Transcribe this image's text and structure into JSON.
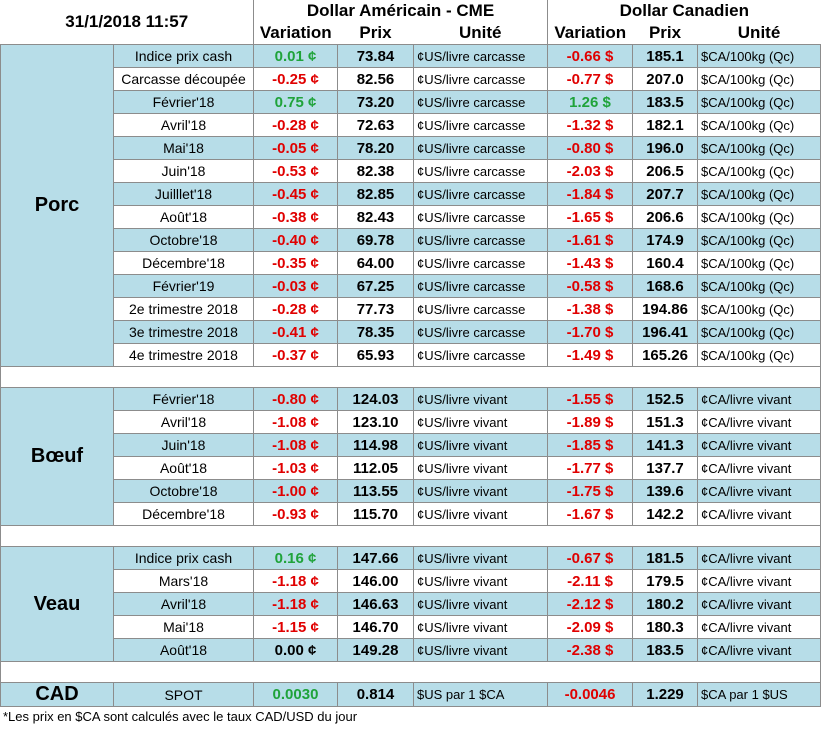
{
  "header": {
    "date": "31/1/2018 11:57",
    "usd_title": "Dollar Américain - CME",
    "cad_title": "Dollar Canadien",
    "col_variation": "Variation",
    "col_prix": "Prix",
    "col_unite": "Unité"
  },
  "groups": [
    {
      "name": "Porc",
      "rows": [
        {
          "label": "Indice prix cash",
          "usd_var": "0.01 ¢",
          "usd_sign": "pos",
          "usd_price": "73.84",
          "usd_unit": "¢US/livre carcasse",
          "cad_var": "-0.66 $",
          "cad_sign": "neg",
          "cad_price": "185.1",
          "cad_unit": "$CA/100kg (Qc)"
        },
        {
          "label": "Carcasse découpée",
          "usd_var": "-0.25 ¢",
          "usd_sign": "neg",
          "usd_price": "82.56",
          "usd_unit": "¢US/livre carcasse",
          "cad_var": "-0.77 $",
          "cad_sign": "neg",
          "cad_price": "207.0",
          "cad_unit": "$CA/100kg (Qc)"
        },
        {
          "label": "Février'18",
          "usd_var": "0.75 ¢",
          "usd_sign": "pos",
          "usd_price": "73.20",
          "usd_unit": "¢US/livre carcasse",
          "cad_var": "1.26 $",
          "cad_sign": "pos",
          "cad_price": "183.5",
          "cad_unit": "$CA/100kg (Qc)"
        },
        {
          "label": "Avril'18",
          "usd_var": "-0.28 ¢",
          "usd_sign": "neg",
          "usd_price": "72.63",
          "usd_unit": "¢US/livre carcasse",
          "cad_var": "-1.32 $",
          "cad_sign": "neg",
          "cad_price": "182.1",
          "cad_unit": "$CA/100kg (Qc)"
        },
        {
          "label": "Mai'18",
          "usd_var": "-0.05 ¢",
          "usd_sign": "neg",
          "usd_price": "78.20",
          "usd_unit": "¢US/livre carcasse",
          "cad_var": "-0.80 $",
          "cad_sign": "neg",
          "cad_price": "196.0",
          "cad_unit": "$CA/100kg (Qc)"
        },
        {
          "label": "Juin'18",
          "usd_var": "-0.53 ¢",
          "usd_sign": "neg",
          "usd_price": "82.38",
          "usd_unit": "¢US/livre carcasse",
          "cad_var": "-2.03 $",
          "cad_sign": "neg",
          "cad_price": "206.5",
          "cad_unit": "$CA/100kg (Qc)"
        },
        {
          "label": "Juilllet'18",
          "usd_var": "-0.45 ¢",
          "usd_sign": "neg",
          "usd_price": "82.85",
          "usd_unit": "¢US/livre carcasse",
          "cad_var": "-1.84 $",
          "cad_sign": "neg",
          "cad_price": "207.7",
          "cad_unit": "$CA/100kg (Qc)"
        },
        {
          "label": "Août'18",
          "usd_var": "-0.38 ¢",
          "usd_sign": "neg",
          "usd_price": "82.43",
          "usd_unit": "¢US/livre carcasse",
          "cad_var": "-1.65 $",
          "cad_sign": "neg",
          "cad_price": "206.6",
          "cad_unit": "$CA/100kg (Qc)"
        },
        {
          "label": "Octobre'18",
          "usd_var": "-0.40 ¢",
          "usd_sign": "neg",
          "usd_price": "69.78",
          "usd_unit": "¢US/livre carcasse",
          "cad_var": "-1.61 $",
          "cad_sign": "neg",
          "cad_price": "174.9",
          "cad_unit": "$CA/100kg (Qc)"
        },
        {
          "label": "Décembre'18",
          "usd_var": "-0.35 ¢",
          "usd_sign": "neg",
          "usd_price": "64.00",
          "usd_unit": "¢US/livre carcasse",
          "cad_var": "-1.43 $",
          "cad_sign": "neg",
          "cad_price": "160.4",
          "cad_unit": "$CA/100kg (Qc)"
        },
        {
          "label": "Février'19",
          "usd_var": "-0.03 ¢",
          "usd_sign": "neg",
          "usd_price": "67.25",
          "usd_unit": "¢US/livre carcasse",
          "cad_var": "-0.58 $",
          "cad_sign": "neg",
          "cad_price": "168.6",
          "cad_unit": "$CA/100kg (Qc)"
        },
        {
          "label": "2e trimestre 2018",
          "usd_var": "-0.28 ¢",
          "usd_sign": "neg",
          "usd_price": "77.73",
          "usd_unit": "¢US/livre carcasse",
          "cad_var": "-1.38 $",
          "cad_sign": "neg",
          "cad_price": "194.86",
          "cad_unit": "$CA/100kg (Qc)"
        },
        {
          "label": "3e trimestre 2018",
          "usd_var": "-0.41 ¢",
          "usd_sign": "neg",
          "usd_price": "78.35",
          "usd_unit": "¢US/livre carcasse",
          "cad_var": "-1.70 $",
          "cad_sign": "neg",
          "cad_price": "196.41",
          "cad_unit": "$CA/100kg (Qc)"
        },
        {
          "label": "4e trimestre 2018",
          "usd_var": "-0.37 ¢",
          "usd_sign": "neg",
          "usd_price": "65.93",
          "usd_unit": "¢US/livre carcasse",
          "cad_var": "-1.49 $",
          "cad_sign": "neg",
          "cad_price": "165.26",
          "cad_unit": "$CA/100kg (Qc)"
        }
      ]
    },
    {
      "name": "Bœuf",
      "rows": [
        {
          "label": "Février'18",
          "usd_var": "-0.80 ¢",
          "usd_sign": "neg",
          "usd_price": "124.03",
          "usd_unit": "¢US/livre vivant",
          "cad_var": "-1.55 $",
          "cad_sign": "neg",
          "cad_price": "152.5",
          "cad_unit": "¢CA/livre vivant"
        },
        {
          "label": "Avril'18",
          "usd_var": "-1.08 ¢",
          "usd_sign": "neg",
          "usd_price": "123.10",
          "usd_unit": "¢US/livre vivant",
          "cad_var": "-1.89 $",
          "cad_sign": "neg",
          "cad_price": "151.3",
          "cad_unit": "¢CA/livre vivant"
        },
        {
          "label": "Juin'18",
          "usd_var": "-1.08 ¢",
          "usd_sign": "neg",
          "usd_price": "114.98",
          "usd_unit": "¢US/livre vivant",
          "cad_var": "-1.85 $",
          "cad_sign": "neg",
          "cad_price": "141.3",
          "cad_unit": "¢CA/livre vivant"
        },
        {
          "label": "Août'18",
          "usd_var": "-1.03 ¢",
          "usd_sign": "neg",
          "usd_price": "112.05",
          "usd_unit": "¢US/livre vivant",
          "cad_var": "-1.77 $",
          "cad_sign": "neg",
          "cad_price": "137.7",
          "cad_unit": "¢CA/livre vivant"
        },
        {
          "label": "Octobre'18",
          "usd_var": "-1.00 ¢",
          "usd_sign": "neg",
          "usd_price": "113.55",
          "usd_unit": "¢US/livre vivant",
          "cad_var": "-1.75 $",
          "cad_sign": "neg",
          "cad_price": "139.6",
          "cad_unit": "¢CA/livre vivant"
        },
        {
          "label": "Décembre'18",
          "usd_var": "-0.93 ¢",
          "usd_sign": "neg",
          "usd_price": "115.70",
          "usd_unit": "¢US/livre vivant",
          "cad_var": "-1.67 $",
          "cad_sign": "neg",
          "cad_price": "142.2",
          "cad_unit": "¢CA/livre vivant"
        }
      ]
    },
    {
      "name": "Veau",
      "rows": [
        {
          "label": "Indice prix cash",
          "usd_var": "0.16 ¢",
          "usd_sign": "pos",
          "usd_price": "147.66",
          "usd_unit": "¢US/livre vivant",
          "cad_var": "-0.67 $",
          "cad_sign": "neg",
          "cad_price": "181.5",
          "cad_unit": "¢CA/livre vivant"
        },
        {
          "label": "Mars'18",
          "usd_var": "-1.18 ¢",
          "usd_sign": "neg",
          "usd_price": "146.00",
          "usd_unit": "¢US/livre vivant",
          "cad_var": "-2.11 $",
          "cad_sign": "neg",
          "cad_price": "179.5",
          "cad_unit": "¢CA/livre vivant"
        },
        {
          "label": "Avril'18",
          "usd_var": "-1.18 ¢",
          "usd_sign": "neg",
          "usd_price": "146.63",
          "usd_unit": "¢US/livre vivant",
          "cad_var": "-2.12 $",
          "cad_sign": "neg",
          "cad_price": "180.2",
          "cad_unit": "¢CA/livre vivant"
        },
        {
          "label": "Mai'18",
          "usd_var": "-1.15 ¢",
          "usd_sign": "neg",
          "usd_price": "146.70",
          "usd_unit": "¢US/livre vivant",
          "cad_var": "-2.09 $",
          "cad_sign": "neg",
          "cad_price": "180.3",
          "cad_unit": "¢CA/livre vivant"
        },
        {
          "label": "Août'18",
          "usd_var": "0.00 ¢",
          "usd_sign": "zero",
          "usd_price": "149.28",
          "usd_unit": "¢US/livre vivant",
          "cad_var": "-2.38 $",
          "cad_sign": "neg",
          "cad_price": "183.5",
          "cad_unit": "¢CA/livre vivant"
        }
      ]
    }
  ],
  "cad_row": {
    "name": "CAD",
    "label": "SPOT",
    "usd_var": "0.0030",
    "usd_sign": "pos",
    "usd_price": "0.814",
    "usd_unit": "$US par 1 $CA",
    "cad_var": "-0.0046",
    "cad_sign": "neg",
    "cad_price": "1.229",
    "cad_unit": "$CA par 1 $US"
  },
  "footnote": "*Les  prix en $CA sont calculés avec le taux CAD/USD du jour"
}
